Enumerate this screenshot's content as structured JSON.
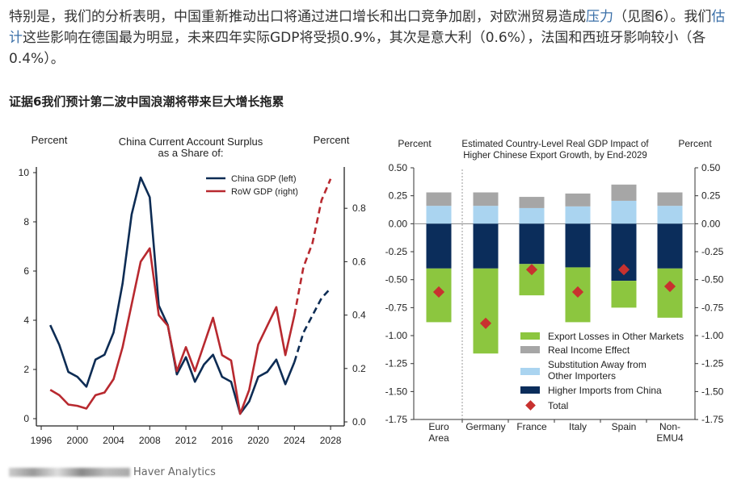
{
  "article": {
    "p1": "特别是，我们的分析表明，中国重新推动出口将通过进口增长和出口竞争加剧，对欧洲贸易造成",
    "link1": "压力",
    "p2": "（见图6）。我们",
    "link2": "估计",
    "p3": "这些影响在德国最为明显，未来四年实际GDP将受损0.9%，其次是意大利（0.6%），法国和西班牙影响较小（各0.4%）。",
    "heading": "证据6我们预计第二波中国浪潮将带来巨大增长拖累",
    "source": "Haver Analytics",
    "link_color": "#3a6fa8"
  },
  "chart_data": [
    {
      "type": "line",
      "title": "China Current Account Surplus as a Share of:",
      "title_lines": [
        "China Current Account Surplus",
        "as a Share of:"
      ],
      "ylabel_left": "Percent",
      "ylabel_right": "Percent",
      "x_ticks": [
        1996,
        2000,
        2004,
        2008,
        2012,
        2016,
        2020,
        2024,
        2028
      ],
      "y_left_ticks": [
        0,
        2,
        4,
        6,
        8,
        10
      ],
      "y_right_ticks": [
        "0.0",
        "0.2",
        "0.4",
        "0.6",
        "0.8"
      ],
      "ylim_left": [
        0,
        10
      ],
      "ylim_right": [
        0,
        0.9
      ],
      "grid": false,
      "legend": "top-right",
      "x": [
        1997,
        1998,
        1999,
        2000,
        2001,
        2002,
        2003,
        2004,
        2005,
        2006,
        2007,
        2008,
        2009,
        2010,
        2011,
        2012,
        2013,
        2014,
        2015,
        2016,
        2017,
        2018,
        2019,
        2020,
        2021,
        2022,
        2023,
        2024
      ],
      "x_projection": [
        2024,
        2025,
        2026,
        2027,
        2028
      ],
      "series": [
        {
          "name": "China GDP (left)",
          "axis": "left",
          "color": "#0d2c54",
          "values": [
            3.8,
            3.0,
            1.9,
            1.7,
            1.3,
            2.4,
            2.6,
            3.5,
            5.5,
            8.3,
            9.8,
            9.0,
            4.6,
            3.8,
            1.8,
            2.5,
            1.5,
            2.2,
            2.6,
            1.7,
            1.5,
            0.2,
            0.7,
            1.7,
            1.9,
            2.4,
            1.4,
            2.3
          ],
          "projection": [
            2.3,
            3.5,
            4.2,
            4.9,
            5.3
          ]
        },
        {
          "name": "RoW GDP (right)",
          "axis": "right",
          "color": "#b8292f",
          "values": [
            0.12,
            0.1,
            0.065,
            0.06,
            0.05,
            0.1,
            0.11,
            0.16,
            0.28,
            0.44,
            0.6,
            0.65,
            0.4,
            0.36,
            0.19,
            0.28,
            0.19,
            0.29,
            0.39,
            0.25,
            0.23,
            0.03,
            0.12,
            0.29,
            0.36,
            0.43,
            0.25,
            0.4
          ],
          "projection": [
            0.4,
            0.58,
            0.67,
            0.83,
            0.91
          ]
        }
      ]
    },
    {
      "type": "bar",
      "stacked": true,
      "title": "Estimated Country-Level Real GDP Impact of Higher Chinese Export Growth, by End-2029",
      "title_lines": [
        "Estimated Country-Level Real GDP Impact of",
        "Higher Chinese Export Growth, by End-2029"
      ],
      "ylabel_left": "Percent",
      "ylabel_right": "Percent",
      "categories": [
        [
          "Euro",
          "Area"
        ],
        [
          "Germany"
        ],
        [
          "France"
        ],
        [
          "Italy"
        ],
        [
          "Spain"
        ],
        [
          "Non-",
          "EMU4"
        ]
      ],
      "y_ticks": [
        "0.50",
        "0.25",
        "0.00",
        "-0.25",
        "-0.50",
        "-0.75",
        "-1.00",
        "-1.25",
        "-1.50",
        "-1.75"
      ],
      "ylim": [
        -1.75,
        0.5
      ],
      "grid": false,
      "legend": "bottom-right",
      "series": [
        {
          "name": "Export Losses in Other Markets",
          "color": "#8cc63f",
          "values": [
            -0.48,
            -0.76,
            -0.28,
            -0.49,
            -0.24,
            -0.44
          ]
        },
        {
          "name": "Real Income Effect",
          "color": "#a6a6a6",
          "values": [
            0.12,
            0.12,
            0.1,
            0.115,
            0.145,
            0.12
          ]
        },
        {
          "name": "Substitution Away from Other Importers",
          "legend_lines": [
            "Substitution Away from",
            "Other Importers"
          ],
          "color": "#aad4f0",
          "values": [
            0.16,
            0.16,
            0.14,
            0.155,
            0.205,
            0.16
          ]
        },
        {
          "name": "Higher Imports from China",
          "color": "#0b2d5b",
          "values": [
            -0.4,
            -0.4,
            -0.36,
            -0.39,
            -0.51,
            -0.4
          ]
        }
      ],
      "total": {
        "name": "Total",
        "color": "#c8312f",
        "values": [
          -0.61,
          -0.89,
          -0.41,
          -0.61,
          -0.41,
          -0.56
        ]
      }
    }
  ]
}
